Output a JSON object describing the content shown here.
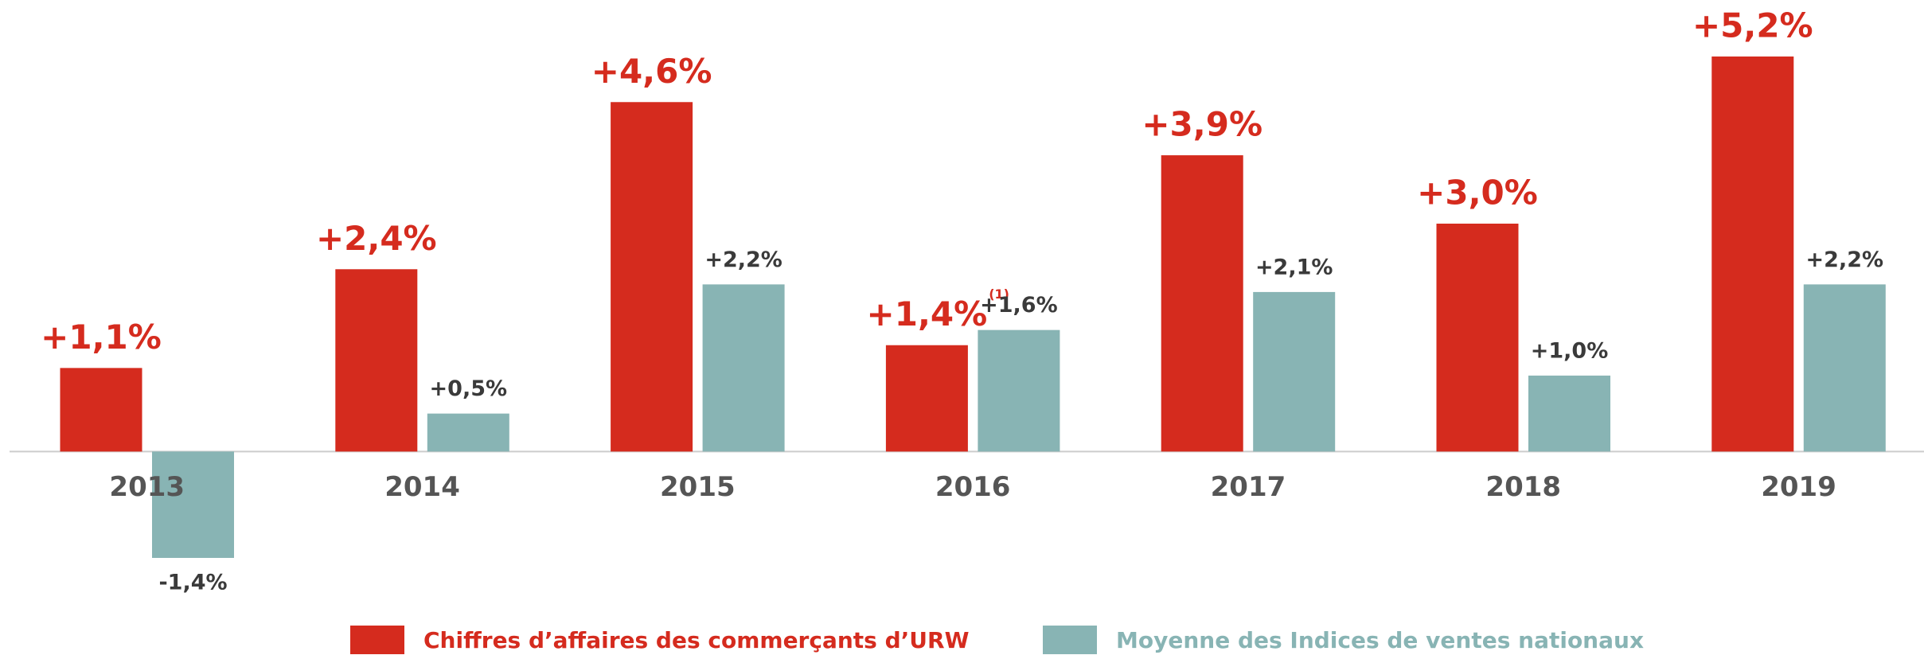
{
  "chart_data": {
    "type": "bar",
    "categories": [
      "2013",
      "2014",
      "2015",
      "2016",
      "2017",
      "2018",
      "2019"
    ],
    "series": [
      {
        "name": "Chiffres d’affaires des commerçants d’URW",
        "color": "#d52b1e",
        "values": [
          1.1,
          2.4,
          4.6,
          1.4,
          3.9,
          3.0,
          5.2
        ],
        "value_labels": [
          "+1,1%",
          "+2,4%",
          "+4,6%",
          "+1,4%",
          "+3,9%",
          "+3,0%",
          "+5,2%"
        ]
      },
      {
        "name": "Moyenne des Indices de ventes nationaux",
        "color": "#88b4b4",
        "values": [
          -1.4,
          0.5,
          2.2,
          1.6,
          2.1,
          1.0,
          2.2
        ],
        "value_labels": [
          "-1,4%",
          "+0,5%",
          "+2,2%",
          "+1,6%",
          "+2,1%",
          "+1,0%",
          "+2,2%"
        ]
      }
    ],
    "annotation": "(1)",
    "legend": "bottom"
  }
}
